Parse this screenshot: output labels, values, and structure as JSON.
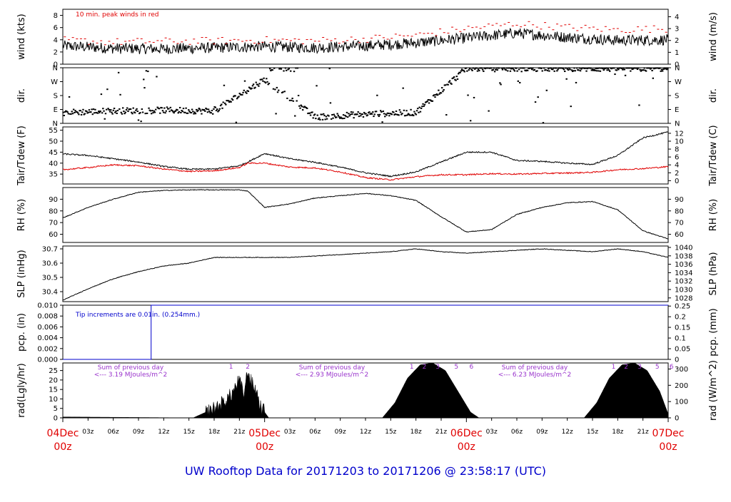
{
  "footer": "UW Rooftop Data for 20171203  to  20171206 @ 23:58:17  (UTC)",
  "colors": {
    "series": "#000000",
    "peak": "#e00000",
    "dew": "#e00000",
    "note_blue": "#0000cc",
    "note_purple": "#9933cc",
    "day": "#e00000"
  },
  "chart_data": [
    {
      "id": "wind",
      "type": "line",
      "ylabel": "wind (kts)",
      "ylabel_right": "wind (m/s)",
      "ylim": [
        0,
        9
      ],
      "yticks": [
        0,
        2,
        4,
        6,
        8
      ],
      "right_ticks": [
        "0",
        "1",
        "2",
        "3",
        "4"
      ],
      "right_values": [
        0,
        1,
        2,
        3,
        4
      ],
      "right_scale": 1.9438,
      "note": "10 min. peak winds in red",
      "x_hours": [
        0,
        6,
        12,
        18,
        24,
        30,
        36,
        42,
        48,
        54,
        60,
        66,
        72
      ],
      "series": [
        {
          "values": [
            3.0,
            2.6,
            2.5,
            2.7,
            2.9,
            2.7,
            3.0,
            3.5,
            4.3,
            5.1,
            4.4,
            3.9,
            4.0
          ]
        },
        {
          "values": [
            3.7,
            3.4,
            3.5,
            3.6,
            3.7,
            3.6,
            3.9,
            4.5,
            5.6,
            6.4,
            5.8,
            5.4,
            5.6
          ]
        }
      ]
    },
    {
      "id": "dir",
      "type": "scatter",
      "ylabel": "dir.",
      "ylabel_right": "dir.",
      "ylim": [
        0,
        360
      ],
      "ytick_labels": [
        "N",
        "E",
        "S",
        "W",
        "N"
      ],
      "ytick_values": [
        0,
        90,
        180,
        270,
        360
      ],
      "x_hours": [
        0,
        6,
        12,
        18,
        24,
        30,
        36,
        42,
        48,
        54,
        60,
        66,
        72
      ],
      "series": [
        {
          "name": "main",
          "values": [
            70,
            80,
            85,
            80,
            285,
            40,
            60,
            70,
            355,
            355,
            355,
            355,
            355
          ]
        }
      ]
    },
    {
      "id": "temp",
      "type": "line",
      "ylabel": "Tair/Tdew (F)",
      "ylabel_right": "Tair/Tdew (C)",
      "ylim": [
        30.5,
        56.5
      ],
      "yticks": [
        35,
        40,
        45,
        50,
        55
      ],
      "right_ticks": [
        "0",
        "2",
        "4",
        "6",
        "8",
        "10",
        "12"
      ],
      "right_values": [
        32,
        35.6,
        39.2,
        42.8,
        46.4,
        50,
        53.6
      ],
      "x_hours": [
        0,
        3,
        6,
        9,
        12,
        15,
        18,
        21,
        22,
        24,
        27,
        30,
        33,
        36,
        39,
        42,
        45,
        48,
        51,
        54,
        57,
        60,
        63,
        66,
        69,
        72
      ],
      "series": [
        {
          "name": "Tair",
          "values": [
            44.2,
            43.5,
            42.0,
            40.5,
            38.5,
            37.2,
            37.3,
            38.8,
            40.5,
            44.4,
            42.0,
            40.4,
            38.2,
            35.6,
            34.0,
            36.0,
            40.5,
            45.0,
            45.0,
            41.2,
            40.8,
            40.0,
            39.4,
            43.5,
            51.5,
            54.2
          ]
        },
        {
          "name": "Tdew",
          "values": [
            37.0,
            38.0,
            39.2,
            38.8,
            37.3,
            36.2,
            36.5,
            38.0,
            40.0,
            40.0,
            38.2,
            37.8,
            36.0,
            33.4,
            32.4,
            33.8,
            34.7,
            34.7,
            35.2,
            35.0,
            35.3,
            35.5,
            35.8,
            37.0,
            37.5,
            38.4
          ]
        }
      ]
    },
    {
      "id": "rh",
      "type": "line",
      "ylabel": "RH (%)",
      "ylabel_right": "RH (%)",
      "ylim": [
        53,
        100
      ],
      "yticks": [
        60,
        70,
        80,
        90
      ],
      "right_ticks": [
        "60",
        "70",
        "80",
        "90"
      ],
      "right_values": [
        60,
        70,
        80,
        90
      ],
      "x_hours": [
        0,
        3,
        6,
        9,
        12,
        15,
        18,
        21,
        22,
        24,
        27,
        30,
        33,
        36,
        39,
        42,
        45,
        48,
        51,
        54,
        57,
        60,
        63,
        66,
        69,
        72
      ],
      "series": [
        {
          "values": [
            74,
            83,
            90,
            96,
            97.5,
            98,
            98,
            98,
            97,
            83,
            86,
            91,
            93,
            95,
            93,
            89,
            75,
            62,
            64,
            77,
            83,
            87,
            88,
            81,
            63,
            56
          ]
        }
      ]
    },
    {
      "id": "slp",
      "type": "line",
      "ylabel": "SLP (inHg)",
      "ylabel_right": "SLP (hPa)",
      "ylim": [
        30.33,
        30.72
      ],
      "yticks": [
        30.4,
        30.5,
        30.6,
        30.7
      ],
      "right_ticks": [
        "1028",
        "1030",
        "1032",
        "1034",
        "1036",
        "1038",
        "1040"
      ],
      "right_values": [
        30.356,
        30.415,
        30.474,
        30.533,
        30.592,
        30.651,
        30.71
      ],
      "x_hours": [
        0,
        3,
        6,
        9,
        12,
        15,
        18,
        21,
        24,
        27,
        30,
        33,
        36,
        39,
        42,
        45,
        48,
        51,
        54,
        57,
        60,
        63,
        66,
        69,
        72
      ],
      "series": [
        {
          "values": [
            30.34,
            30.42,
            30.49,
            30.54,
            30.58,
            30.6,
            30.64,
            30.64,
            30.64,
            30.64,
            30.65,
            30.66,
            30.67,
            30.68,
            30.7,
            30.68,
            30.67,
            30.68,
            30.69,
            30.7,
            30.69,
            30.68,
            30.7,
            30.68,
            30.64
          ]
        }
      ]
    },
    {
      "id": "pcp",
      "type": "line",
      "ylabel": "pcp. (in)",
      "ylabel_right": "pcp. (mm)",
      "ylim": [
        0,
        0.01
      ],
      "yticks": [
        0,
        0.002,
        0.004,
        0.006,
        0.008,
        0.01
      ],
      "ytick_labels": [
        "0.000",
        "0.002",
        "0.004",
        "0.006",
        "0.008",
        "0.010"
      ],
      "right_ticks": [
        "0",
        "0.05",
        "0.1",
        "0.15",
        "0.2",
        "0.25"
      ],
      "right_values": [
        0,
        0.00197,
        0.00394,
        0.00591,
        0.00787,
        0.00984
      ],
      "note": "Tip increments are 0.01in. (0.254mm.)",
      "x_hours": [
        0,
        10.5,
        10.5,
        72
      ],
      "series": [
        {
          "values": [
            0,
            0,
            0.01,
            0.01
          ]
        }
      ]
    },
    {
      "id": "rad",
      "type": "area",
      "ylabel": "rad(Lgly/hr)",
      "ylabel_right": "rad (W/m^2)",
      "ylim": [
        0,
        29
      ],
      "yticks": [
        0,
        5,
        10,
        15,
        20,
        25
      ],
      "right_ticks": [
        "0",
        "100",
        "200",
        "300"
      ],
      "right_values": [
        0,
        8.6,
        17.2,
        25.8
      ],
      "x_hours": [
        0,
        15.5,
        16.5,
        18,
        19,
        20,
        21,
        21.5,
        22,
        22.5,
        23,
        23.5,
        24.5,
        38,
        39.5,
        41,
        42.5,
        44,
        45.5,
        47,
        48.5,
        49.5,
        62,
        63.5,
        65,
        66.5,
        68,
        69.5,
        71,
        72
      ],
      "series": [
        {
          "values": [
            0.5,
            0,
            2,
            5,
            8,
            12,
            20,
            12,
            25,
            18,
            15,
            6,
            0,
            0,
            8,
            21,
            28,
            29,
            25,
            14,
            3,
            0,
            0,
            8,
            21,
            28,
            29,
            25,
            14,
            2
          ]
        }
      ],
      "sums": [
        {
          "title": "Sum of previous day",
          "value": "<--- 3.19 MJoules/m^2"
        },
        {
          "title": "Sum of previous day",
          "value": "<--- 2.93 MJoules/m^2"
        },
        {
          "title": "Sum of previous day",
          "value": "<--- 6.23 MJoules/m^2"
        }
      ],
      "hour_marks": [
        {
          "label": "1",
          "hour": 20
        },
        {
          "label": "2",
          "hour": 22
        },
        {
          "label": "1",
          "hour": 41.5
        },
        {
          "label": "2",
          "hour": 43
        },
        {
          "label": "3",
          "hour": 44.6
        },
        {
          "label": "5",
          "hour": 46.8
        },
        {
          "label": "6",
          "hour": 48.6
        },
        {
          "label": "1",
          "hour": 65.5
        },
        {
          "label": "2",
          "hour": 67
        },
        {
          "label": "3",
          "hour": 68.6
        },
        {
          "label": "5",
          "hour": 70.7
        },
        {
          "label": "6",
          "hour": 72.4
        }
      ]
    }
  ],
  "x_axis": {
    "minor_labels": [
      "03z",
      "06z",
      "09z",
      "12z",
      "15z",
      "18z",
      "21z",
      "03z",
      "06z",
      "09z",
      "12z",
      "15z",
      "18z",
      "21z",
      "03z",
      "06z",
      "09z",
      "12z",
      "15z",
      "18z",
      "21z"
    ],
    "minor_hours": [
      3,
      6,
      9,
      12,
      15,
      18,
      21,
      27,
      30,
      33,
      36,
      39,
      42,
      45,
      51,
      54,
      57,
      60,
      63,
      66,
      69
    ],
    "day_labels": [
      {
        "date": "04Dec",
        "time": "00z",
        "hour": 0
      },
      {
        "date": "05Dec",
        "time": "00z",
        "hour": 24
      },
      {
        "date": "06Dec",
        "time": "00z",
        "hour": 48
      },
      {
        "date": "07Dec",
        "time": "00z",
        "hour": 72
      }
    ]
  }
}
